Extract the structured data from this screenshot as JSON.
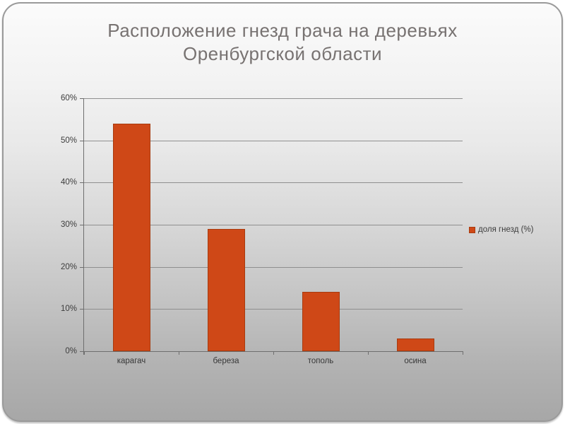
{
  "slide": {
    "title_line1": "Расположение гнезд грача на деревьях",
    "title_line2": "Оренбургской области"
  },
  "chart_data": {
    "type": "bar",
    "title": "Расположение гнезд грача на деревьях Оренбургской области",
    "categories": [
      "карагач",
      "береза",
      "тополь",
      "осина"
    ],
    "values": [
      54,
      29,
      14,
      3
    ],
    "series": [
      {
        "name": "доля гнезд (%)",
        "values": [
          54,
          29,
          14,
          3
        ]
      }
    ],
    "xlabel": "",
    "ylabel": "",
    "ylim": [
      0,
      60
    ],
    "ytick_step": 10,
    "ytick_labels": [
      "0%",
      "10%",
      "20%",
      "30%",
      "40%",
      "50%",
      "60%"
    ],
    "grid": true,
    "legend": {
      "label": "доля гнезд (%)",
      "position": "right"
    },
    "colors": {
      "bar": "#cf4817",
      "bar_border": "#a83c10",
      "gridline": "#8f8f8f",
      "axis": "#6e6e6e",
      "title_text": "#777271",
      "tick_text": "#3d3d3d",
      "slide_gradient_top": "#fbfbfb",
      "slide_gradient_bottom": "#a7a7a7"
    }
  }
}
